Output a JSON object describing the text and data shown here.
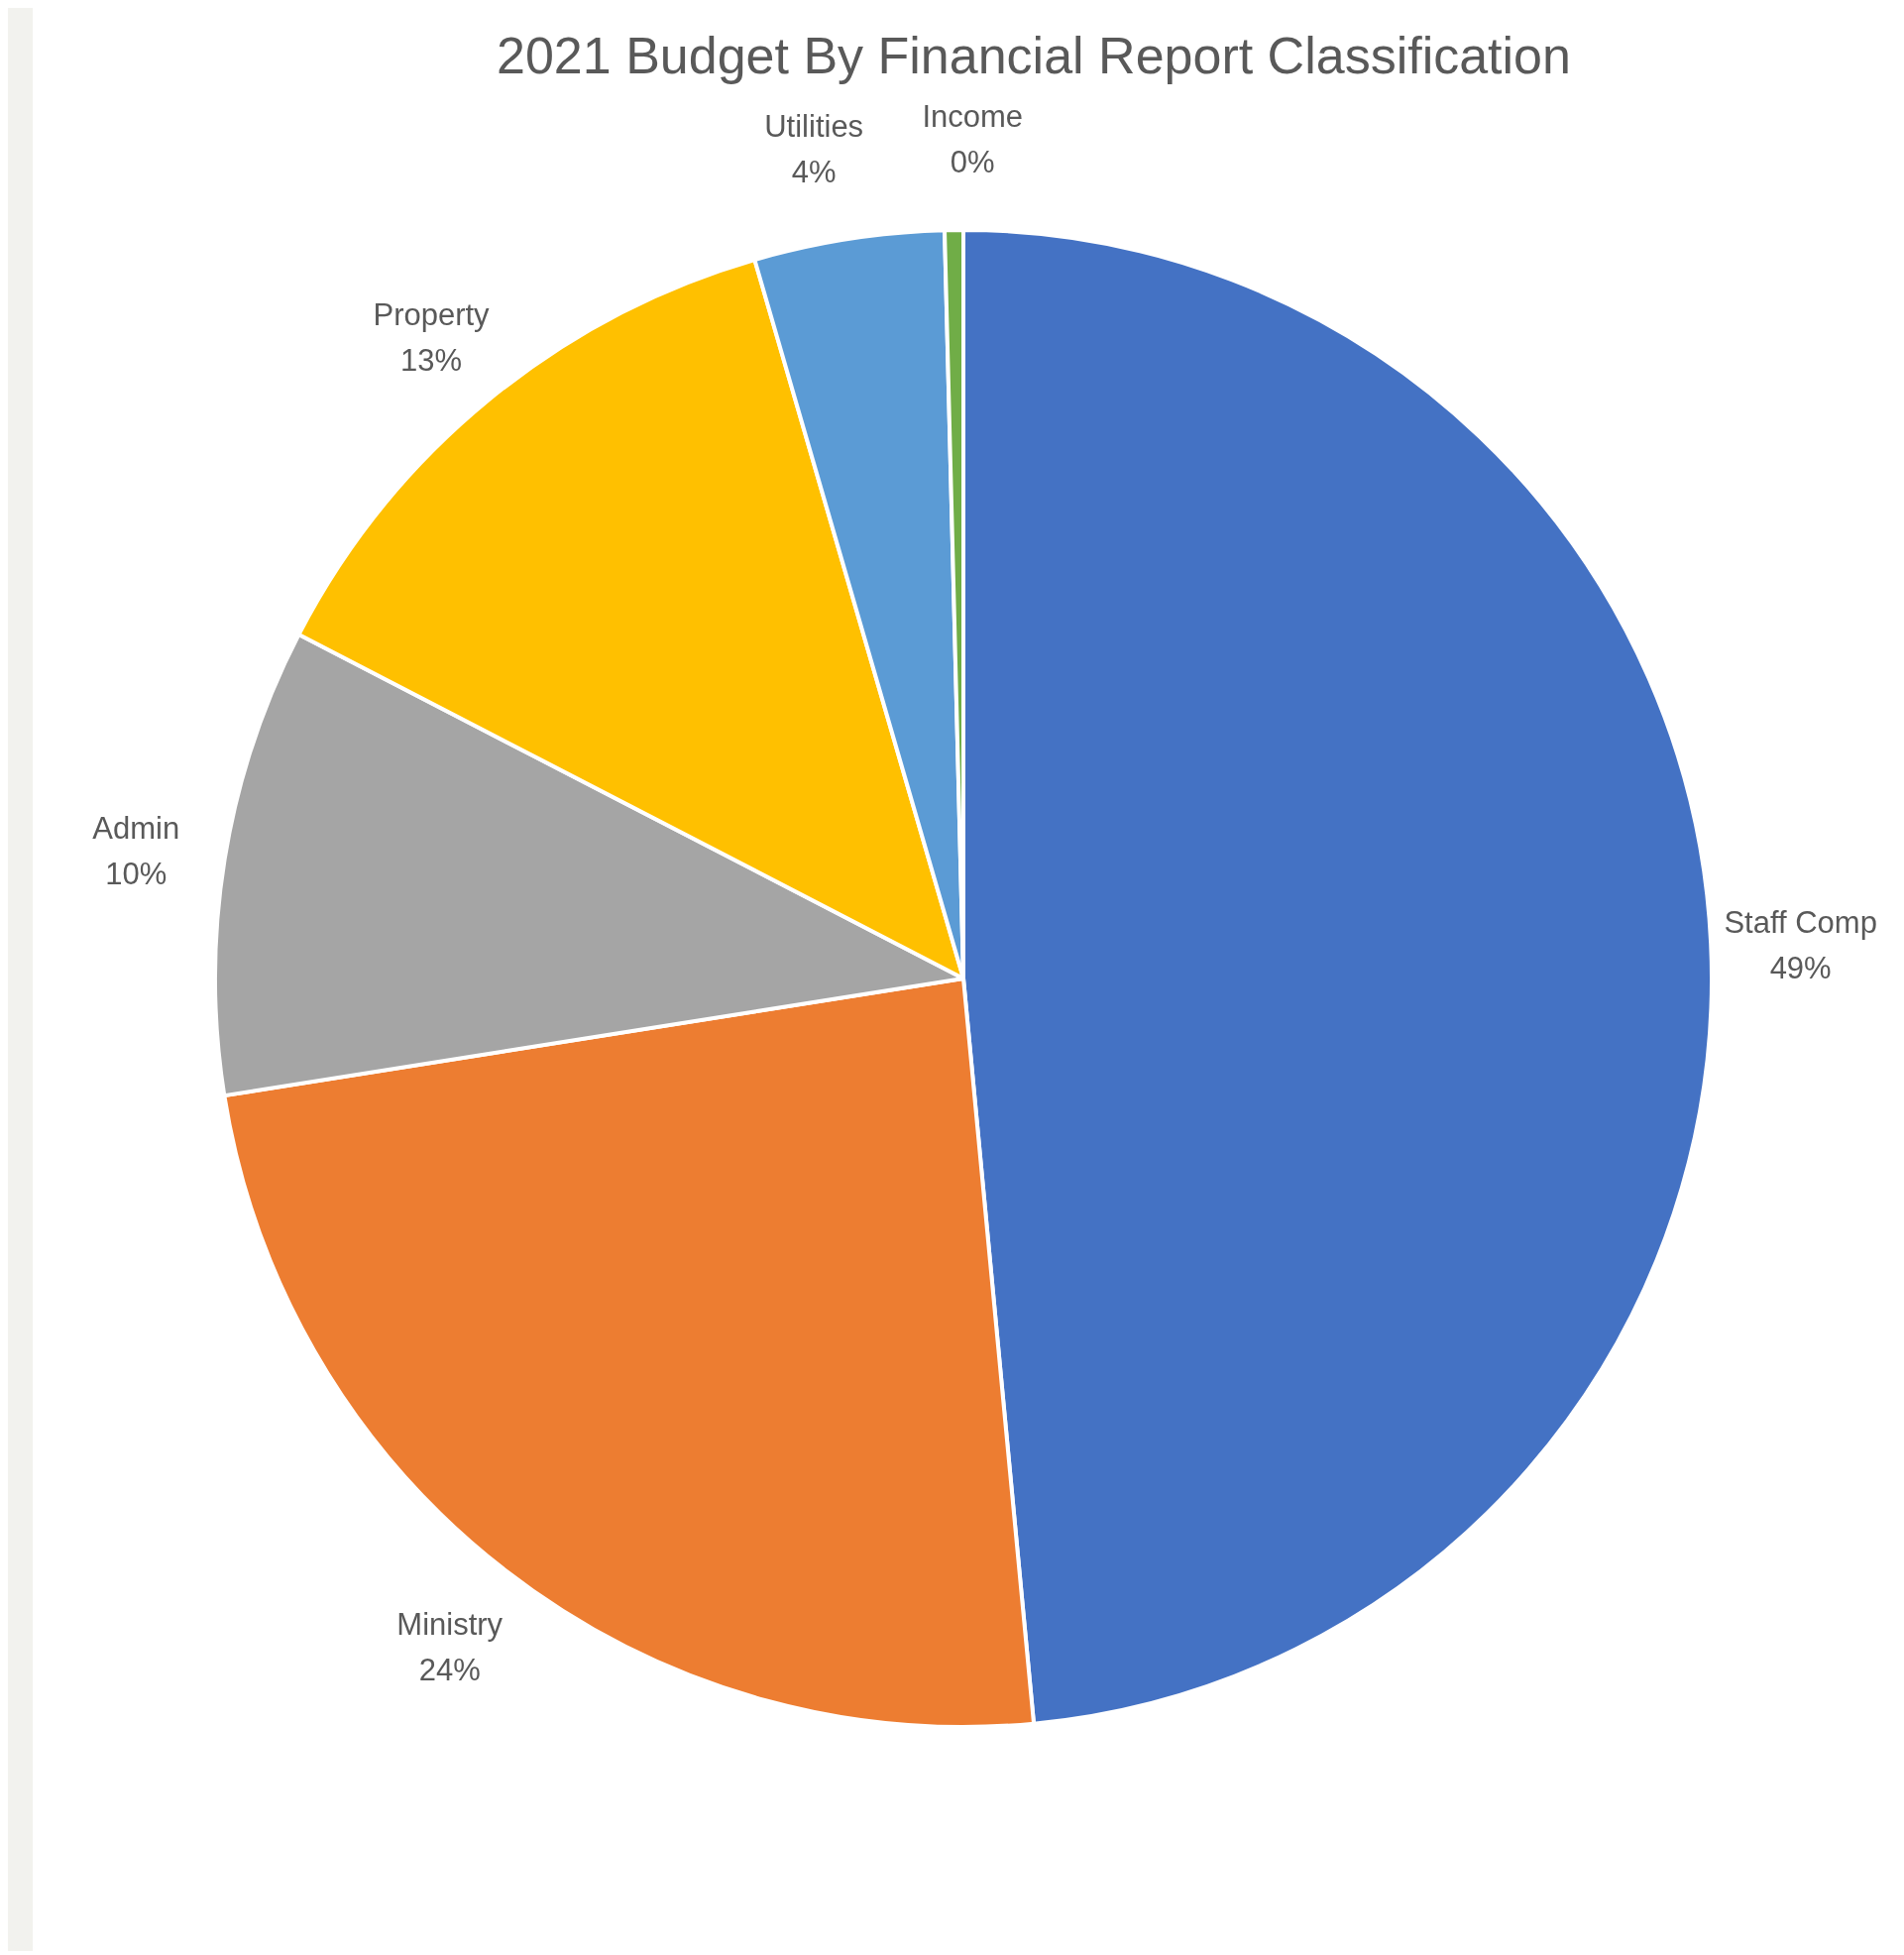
{
  "chart_data": {
    "type": "pie",
    "title": "2021 Budget By Financial Report Classification",
    "categories": [
      "Staff Comp",
      "Ministry",
      "Admin",
      "Property",
      "Utilities",
      "Income"
    ],
    "values": [
      48.5,
      24.0,
      10.1,
      12.9,
      4.1,
      0.4
    ],
    "value_labels": [
      "49%",
      "24%",
      "10%",
      "13%",
      "4%",
      "0%"
    ],
    "colors": [
      "#4472c4",
      "#ed7d31",
      "#a5a5a5",
      "#ffc000",
      "#5b9bd5",
      "#70ad47"
    ]
  }
}
